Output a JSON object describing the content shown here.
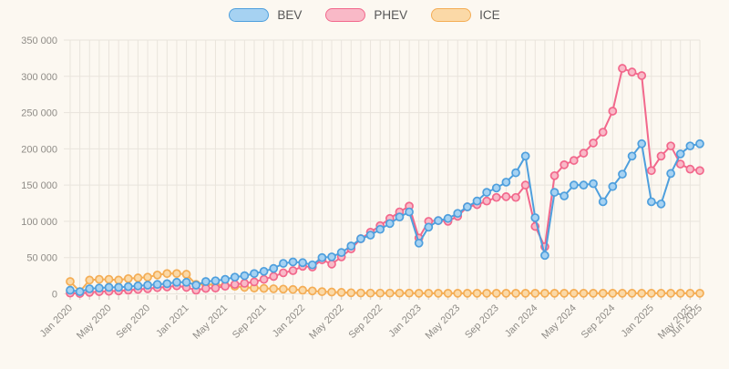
{
  "chart_data": {
    "type": "line",
    "title": "",
    "month_count": 66,
    "x_start": "Jan 2020",
    "x_end": "Jun 2025",
    "x_tick_labels": [
      "Jan 2020",
      "May 2020",
      "Sep 2020",
      "Jan 2021",
      "May 2021",
      "Sep 2021",
      "Jan 2022",
      "May 2022",
      "Sep 2022",
      "Jan 2023",
      "May 2023",
      "Sep 2023",
      "Jan 2024",
      "May 2024",
      "Sep 2024",
      "Jan 2025",
      "May 2025",
      "Jun 2025"
    ],
    "x_tick_indices": [
      0,
      4,
      8,
      12,
      16,
      20,
      24,
      28,
      32,
      36,
      40,
      44,
      48,
      52,
      56,
      60,
      64,
      65
    ],
    "y_tick_labels": [
      "0",
      "50 000",
      "100 000",
      "150 000",
      "200 000",
      "250 000",
      "300 000",
      "350 000"
    ],
    "y_tick_step": 50000,
    "ylim": [
      0,
      350000
    ],
    "grid": true,
    "legend_position": "top",
    "background": "#fcf8f1",
    "grid_color": "#e9e4dc",
    "tick_mark_color": "#d9d4cb",
    "axis_text_color": "#8f8c87",
    "series": [
      {
        "name": "BEV",
        "color": "#4e9fdd",
        "fill": "#a6d2f2",
        "values": [
          5000,
          3000,
          7000,
          8000,
          9000,
          9000,
          10000,
          11000,
          12000,
          13000,
          14000,
          16000,
          16000,
          12000,
          17000,
          18000,
          20000,
          23000,
          25000,
          28000,
          31000,
          35000,
          42000,
          44000,
          43000,
          40000,
          50000,
          51000,
          57000,
          66000,
          76000,
          81000,
          89000,
          97000,
          106000,
          113000,
          70000,
          92000,
          101000,
          104000,
          111000,
          120000,
          128000,
          140000,
          146000,
          154000,
          167000,
          190000,
          105000,
          53000,
          140000,
          135000,
          150000,
          150000,
          152000,
          127000,
          148000,
          165000,
          190000,
          207000,
          127000,
          124000,
          166000,
          193000,
          204000,
          207000
        ]
      },
      {
        "name": "PHEV",
        "color": "#f2688c",
        "fill": "#f9b9c7",
        "values": [
          1000,
          500,
          2000,
          3000,
          3500,
          4000,
          5000,
          6000,
          7000,
          8500,
          9500,
          11000,
          9000,
          5000,
          7500,
          8000,
          10500,
          13000,
          14500,
          16500,
          20000,
          24000,
          29000,
          32000,
          38000,
          37000,
          47000,
          41000,
          51000,
          62000,
          76000,
          85000,
          94000,
          104000,
          113000,
          121000,
          77000,
          100000,
          101000,
          100000,
          107000,
          120000,
          123000,
          128000,
          133000,
          134000,
          133000,
          150000,
          93000,
          65000,
          163000,
          178000,
          184000,
          194000,
          208000,
          223000,
          252000,
          311000,
          306000,
          301000,
          170000,
          190000,
          204000,
          179000,
          172000,
          170000
        ]
      },
      {
        "name": "ICE",
        "color": "#f4ad55",
        "fill": "#fbd9a7",
        "values": [
          17000,
          3000,
          19000,
          20000,
          20000,
          19000,
          21000,
          22000,
          23000,
          26000,
          28000,
          28000,
          27000,
          13000,
          13000,
          12500,
          11500,
          10500,
          9000,
          8000,
          7500,
          7000,
          6500,
          6000,
          5000,
          4000,
          3000,
          2500,
          2000,
          1500,
          1200,
          1000,
          1000,
          1000,
          1000,
          1000,
          800,
          800,
          800,
          800,
          800,
          800,
          800,
          800,
          800,
          800,
          800,
          800,
          800,
          800,
          800,
          800,
          800,
          800,
          800,
          800,
          800,
          800,
          800,
          800,
          800,
          800,
          800,
          800,
          800,
          800
        ]
      }
    ]
  }
}
